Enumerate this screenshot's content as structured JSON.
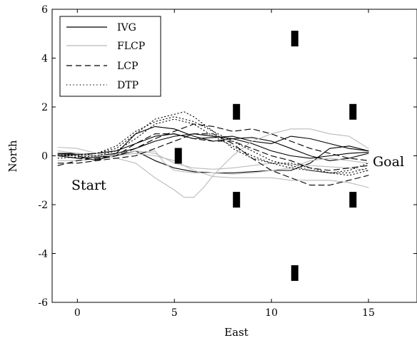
{
  "chart_data": {
    "type": "line",
    "xlabel": "East",
    "ylabel": "North",
    "xlim": [
      -1.3,
      17.5
    ],
    "ylim": [
      -6,
      6
    ],
    "xticks": [
      0,
      5,
      10,
      15
    ],
    "yticks": [
      -6,
      -4,
      -2,
      0,
      2,
      4,
      6
    ],
    "grid": false,
    "legend_position": "top-left",
    "legend": [
      {
        "label": "IVG",
        "color": "#000000",
        "dash": "solid"
      },
      {
        "label": "FLCP",
        "color": "#bbbbbb",
        "dash": "solid"
      },
      {
        "label": "LCP",
        "color": "#000000",
        "dash": "dashed"
      },
      {
        "label": "DTP",
        "color": "#000000",
        "dash": "dotted"
      }
    ],
    "annotations": [
      {
        "text": "Start",
        "x": -1.0,
        "y": -1.25
      },
      {
        "text": "Goal",
        "x": 15.4,
        "y": -0.3
      }
    ],
    "obstacles": [
      {
        "x": 5.2,
        "y": 0.0
      },
      {
        "x": 8.2,
        "y": 1.8
      },
      {
        "x": 8.2,
        "y": -1.8
      },
      {
        "x": 11.2,
        "y": 4.8
      },
      {
        "x": 11.2,
        "y": -4.8
      },
      {
        "x": 14.2,
        "y": 1.8
      },
      {
        "x": 14.2,
        "y": -1.8
      }
    ],
    "series": [
      {
        "name": "IVG",
        "color": "#000000",
        "dash": "solid",
        "points": [
          [
            -1,
            0.05
          ],
          [
            0,
            0.0
          ],
          [
            1,
            -0.2
          ],
          [
            2,
            0.1
          ],
          [
            3,
            0.9
          ],
          [
            4,
            1.2
          ],
          [
            5,
            1.1
          ],
          [
            6,
            0.8
          ],
          [
            7,
            0.6
          ],
          [
            8,
            0.7
          ],
          [
            9,
            0.5
          ],
          [
            10,
            0.2
          ],
          [
            11,
            0.0
          ],
          [
            12,
            -0.1
          ],
          [
            13,
            0.0
          ],
          [
            14,
            0.1
          ],
          [
            15,
            0.15
          ]
        ]
      },
      {
        "name": "IVG",
        "color": "#000000",
        "dash": "solid",
        "points": [
          [
            -1,
            0.1
          ],
          [
            0,
            0.1
          ],
          [
            1,
            0.0
          ],
          [
            2,
            0.1
          ],
          [
            3,
            0.3
          ],
          [
            4,
            0.6
          ],
          [
            5,
            0.8
          ],
          [
            6,
            0.9
          ],
          [
            7,
            0.8
          ],
          [
            8,
            0.7
          ],
          [
            9,
            0.75
          ],
          [
            10,
            0.6
          ],
          [
            11,
            0.3
          ],
          [
            12,
            0.0
          ],
          [
            13,
            -0.2
          ],
          [
            14,
            -0.1
          ],
          [
            15,
            0.1
          ]
        ]
      },
      {
        "name": "IVG",
        "color": "#000000",
        "dash": "solid",
        "points": [
          [
            -1,
            0.0
          ],
          [
            0,
            -0.1
          ],
          [
            1,
            -0.05
          ],
          [
            2,
            0.0
          ],
          [
            3,
            0.2
          ],
          [
            4,
            -0.2
          ],
          [
            5,
            -0.5
          ],
          [
            6,
            -0.65
          ],
          [
            7,
            -0.7
          ],
          [
            8,
            -0.7
          ],
          [
            9,
            -0.65
          ],
          [
            10,
            -0.6
          ],
          [
            11,
            -0.6
          ],
          [
            12,
            -0.3
          ],
          [
            13,
            0.3
          ],
          [
            14,
            0.4
          ],
          [
            15,
            0.2
          ]
        ]
      },
      {
        "name": "IVG",
        "color": "#000000",
        "dash": "solid",
        "points": [
          [
            -1,
            0.1
          ],
          [
            0,
            0.05
          ],
          [
            1,
            0.1
          ],
          [
            2,
            0.2
          ],
          [
            3,
            0.5
          ],
          [
            4,
            0.8
          ],
          [
            5,
            0.9
          ],
          [
            6,
            0.7
          ],
          [
            7,
            0.75
          ],
          [
            8,
            0.8
          ],
          [
            9,
            0.6
          ],
          [
            10,
            0.5
          ],
          [
            11,
            0.8
          ],
          [
            12,
            0.7
          ],
          [
            13,
            0.5
          ],
          [
            14,
            0.3
          ],
          [
            15,
            0.2
          ]
        ]
      },
      {
        "name": "FLCP",
        "color": "#bbbbbb",
        "dash": "solid",
        "points": [
          [
            -1,
            0.35
          ],
          [
            0,
            0.3
          ],
          [
            1,
            0.1
          ],
          [
            2,
            -0.1
          ],
          [
            3,
            -0.3
          ],
          [
            4,
            -0.9
          ],
          [
            5,
            -1.4
          ],
          [
            5.5,
            -1.7
          ],
          [
            6,
            -1.7
          ],
          [
            6.5,
            -1.3
          ],
          [
            7,
            -0.8
          ],
          [
            8,
            0.0
          ],
          [
            9,
            0.6
          ],
          [
            10,
            0.9
          ],
          [
            11,
            1.1
          ],
          [
            12,
            1.1
          ],
          [
            13,
            0.9
          ],
          [
            14,
            0.8
          ],
          [
            15,
            0.3
          ]
        ]
      },
      {
        "name": "FLCP",
        "color": "#bbbbbb",
        "dash": "solid",
        "points": [
          [
            -1,
            0.0
          ],
          [
            0,
            0.0
          ],
          [
            1,
            0.0
          ],
          [
            2,
            0.0
          ],
          [
            3,
            0.1
          ],
          [
            4,
            0.2
          ],
          [
            4.5,
            -0.3
          ],
          [
            5,
            -0.6
          ],
          [
            6,
            -0.7
          ],
          [
            7,
            -0.7
          ],
          [
            8,
            -0.75
          ],
          [
            9,
            -0.7
          ],
          [
            10,
            -0.6
          ],
          [
            11,
            -0.5
          ],
          [
            12,
            -0.2
          ],
          [
            13,
            -0.1
          ],
          [
            14,
            -0.2
          ],
          [
            15,
            -0.3
          ]
        ]
      },
      {
        "name": "FLCP",
        "color": "#bbbbbb",
        "dash": "solid",
        "points": [
          [
            -1,
            -0.2
          ],
          [
            0,
            -0.2
          ],
          [
            1,
            -0.1
          ],
          [
            2,
            0.0
          ],
          [
            3,
            0.1
          ],
          [
            4,
            0.0
          ],
          [
            5,
            -0.2
          ],
          [
            6,
            -0.6
          ],
          [
            7,
            -0.85
          ],
          [
            8,
            -0.9
          ],
          [
            9,
            -0.9
          ],
          [
            10,
            -0.9
          ],
          [
            11,
            -1.0
          ],
          [
            12,
            -1.0
          ],
          [
            13,
            -1.0
          ],
          [
            14,
            -1.1
          ],
          [
            15,
            -1.3
          ]
        ]
      },
      {
        "name": "FLCP",
        "color": "#bbbbbb",
        "dash": "solid",
        "points": [
          [
            -1,
            0.2
          ],
          [
            0,
            0.1
          ],
          [
            1,
            0.0
          ],
          [
            2,
            0.05
          ],
          [
            3,
            0.2
          ],
          [
            4,
            0.1
          ],
          [
            5,
            -0.3
          ],
          [
            6,
            -0.5
          ],
          [
            7,
            -0.55
          ],
          [
            8,
            -0.5
          ],
          [
            9,
            -0.4
          ],
          [
            10,
            -0.3
          ],
          [
            11,
            -0.35
          ],
          [
            12,
            -0.4
          ],
          [
            13,
            -0.45
          ],
          [
            14,
            -0.5
          ],
          [
            15,
            -0.6
          ]
        ]
      },
      {
        "name": "LCP",
        "color": "#000000",
        "dash": "dashed",
        "points": [
          [
            -1,
            -0.4
          ],
          [
            0,
            -0.2
          ],
          [
            1,
            -0.1
          ],
          [
            2,
            0.0
          ],
          [
            3,
            0.3
          ],
          [
            4,
            0.7
          ],
          [
            5,
            1.0
          ],
          [
            6,
            1.3
          ],
          [
            7,
            1.2
          ],
          [
            8,
            1.0
          ],
          [
            9,
            1.1
          ],
          [
            10,
            0.9
          ],
          [
            11,
            0.6
          ],
          [
            12,
            0.3
          ],
          [
            13,
            0.1
          ],
          [
            14,
            -0.1
          ],
          [
            15,
            -0.2
          ]
        ]
      },
      {
        "name": "LCP",
        "color": "#000000",
        "dash": "dashed",
        "points": [
          [
            -1,
            -0.3
          ],
          [
            0,
            -0.3
          ],
          [
            1,
            -0.2
          ],
          [
            2,
            -0.1
          ],
          [
            3,
            0.0
          ],
          [
            4,
            0.3
          ],
          [
            5,
            0.6
          ],
          [
            6,
            0.9
          ],
          [
            7,
            0.9
          ],
          [
            8,
            0.5
          ],
          [
            9,
            -0.1
          ],
          [
            10,
            -0.6
          ],
          [
            11,
            -0.9
          ],
          [
            12,
            -1.2
          ],
          [
            13,
            -1.2
          ],
          [
            14,
            -1.0
          ],
          [
            15,
            -0.8
          ]
        ]
      },
      {
        "name": "LCP",
        "color": "#000000",
        "dash": "dashed",
        "points": [
          [
            -1,
            0.0
          ],
          [
            0,
            -0.1
          ],
          [
            1,
            -0.15
          ],
          [
            2,
            0.0
          ],
          [
            3,
            0.5
          ],
          [
            4,
            0.9
          ],
          [
            5,
            0.9
          ],
          [
            6,
            0.7
          ],
          [
            7,
            0.6
          ],
          [
            8,
            0.6
          ],
          [
            9,
            0.3
          ],
          [
            10,
            0.0
          ],
          [
            11,
            -0.2
          ],
          [
            12,
            -0.5
          ],
          [
            13,
            -0.6
          ],
          [
            14,
            -0.5
          ],
          [
            15,
            -0.4
          ]
        ]
      },
      {
        "name": "DTP",
        "color": "#000000",
        "dash": "dotted",
        "points": [
          [
            -1,
            0.05
          ],
          [
            0,
            0.05
          ],
          [
            1,
            0.1
          ],
          [
            2,
            0.3
          ],
          [
            3,
            0.9
          ],
          [
            4,
            1.5
          ],
          [
            5,
            1.7
          ],
          [
            5.5,
            1.8
          ],
          [
            6,
            1.6
          ],
          [
            7,
            1.0
          ],
          [
            8,
            0.6
          ],
          [
            9,
            0.2
          ],
          [
            10,
            -0.2
          ],
          [
            11,
            -0.4
          ],
          [
            12,
            -0.6
          ],
          [
            13,
            -0.7
          ],
          [
            14,
            -0.6
          ],
          [
            15,
            -0.3
          ]
        ]
      },
      {
        "name": "DTP",
        "color": "#000000",
        "dash": "dotted",
        "points": [
          [
            -1,
            -0.1
          ],
          [
            0,
            -0.05
          ],
          [
            1,
            0.0
          ],
          [
            2,
            0.2
          ],
          [
            3,
            0.7
          ],
          [
            4,
            1.3
          ],
          [
            5,
            1.5
          ],
          [
            6,
            1.3
          ],
          [
            7,
            0.8
          ],
          [
            8,
            0.4
          ],
          [
            9,
            0.0
          ],
          [
            10,
            -0.3
          ],
          [
            11,
            -0.5
          ],
          [
            12,
            -0.6
          ],
          [
            13,
            -0.7
          ],
          [
            14,
            -0.7
          ],
          [
            15,
            -0.5
          ]
        ]
      },
      {
        "name": "DTP",
        "color": "#000000",
        "dash": "dotted",
        "points": [
          [
            -1,
            0.0
          ],
          [
            0,
            0.0
          ],
          [
            1,
            0.1
          ],
          [
            2,
            0.4
          ],
          [
            3,
            1.0
          ],
          [
            4,
            1.4
          ],
          [
            5,
            1.6
          ],
          [
            6,
            1.4
          ],
          [
            7,
            1.0
          ],
          [
            8,
            0.3
          ],
          [
            9,
            -0.1
          ],
          [
            10,
            -0.3
          ],
          [
            11,
            -0.3
          ],
          [
            12,
            -0.5
          ],
          [
            13,
            -0.7
          ],
          [
            14,
            -0.8
          ],
          [
            15,
            -0.6
          ]
        ]
      }
    ]
  }
}
